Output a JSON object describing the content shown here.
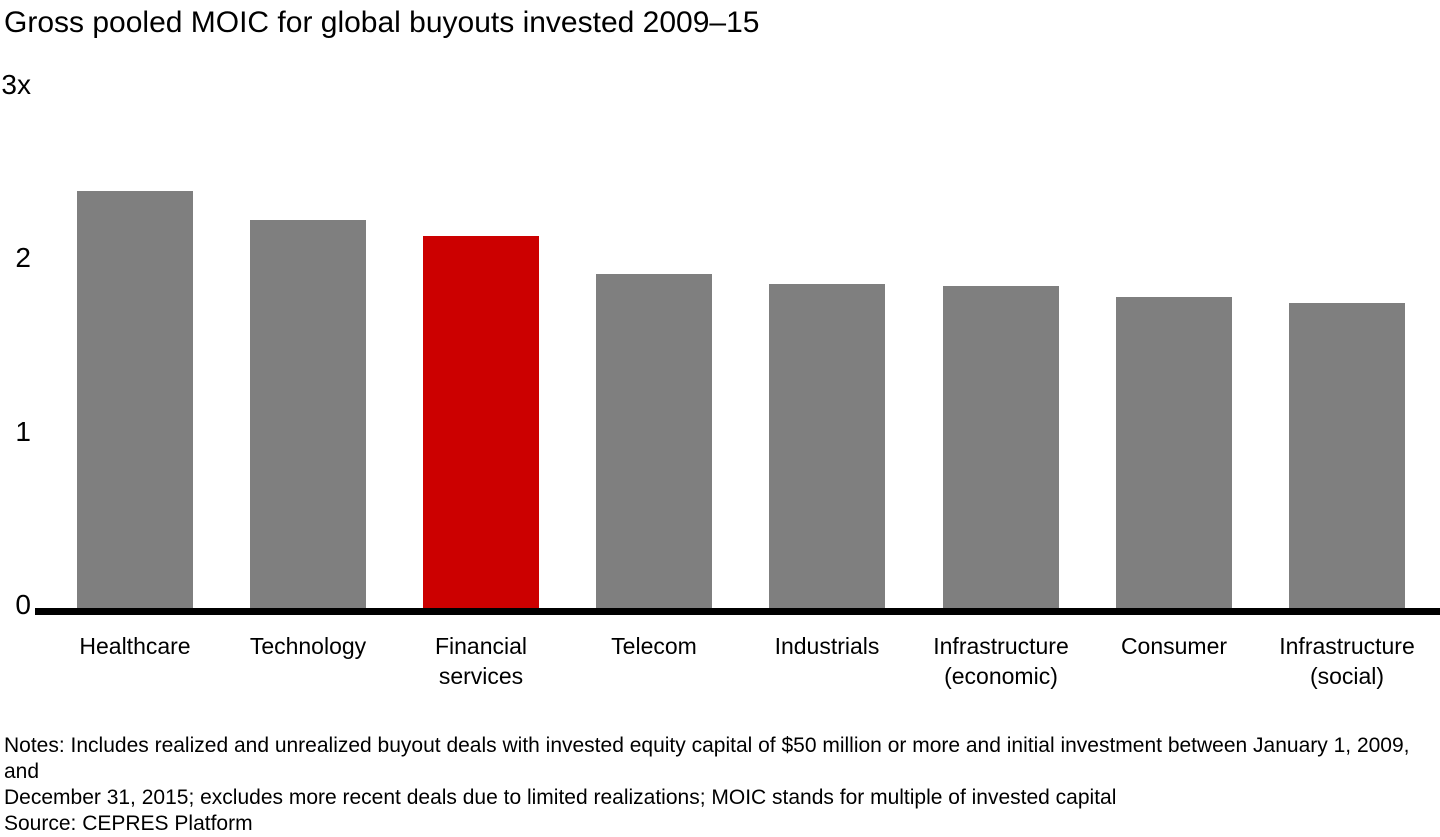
{
  "chart_data": {
    "type": "bar",
    "title": "Gross pooled MOIC for global buyouts invested 2009–15",
    "categories": [
      "Healthcare",
      "Technology",
      "Financial services",
      "Telecom",
      "Industrials",
      "Infrastructure (economic)",
      "Consumer",
      "Infrastructure (social)"
    ],
    "category_label_lines": [
      "Healthcare",
      "Technology",
      "Financial\nservices",
      "Telecom",
      "Industrials",
      "Infrastructure\n(economic)",
      "Consumer",
      "Infrastructure\n(social)"
    ],
    "values": [
      2.39,
      2.22,
      2.13,
      1.91,
      1.85,
      1.84,
      1.78,
      1.74
    ],
    "value_unit": "x (multiple of invested capital)",
    "highlighted_category": "Financial services",
    "highlight_index": 2,
    "y_axis": {
      "range": [
        0,
        3
      ],
      "ticks": [
        {
          "value": 0,
          "label": "0"
        },
        {
          "value": 1,
          "label": "1"
        },
        {
          "value": 2,
          "label": "2"
        },
        {
          "value": 3,
          "label": "3x"
        }
      ]
    },
    "xlabel": "",
    "ylabel": "",
    "legend": "none",
    "grid": false,
    "colors": {
      "bar_default": "#7f7f7f",
      "bar_highlight": "#cc0000",
      "axis": "#000000",
      "text": "#000000"
    }
  },
  "footer": {
    "notes": "Notes: Includes realized and unrealized buyout deals with invested equity capital of $50 million or more and initial investment between January 1, 2009, and\nDecember 31, 2015; excludes more recent deals due to limited realizations; MOIC stands for multiple of invested capital",
    "source": "Source: CEPRES Platform"
  }
}
